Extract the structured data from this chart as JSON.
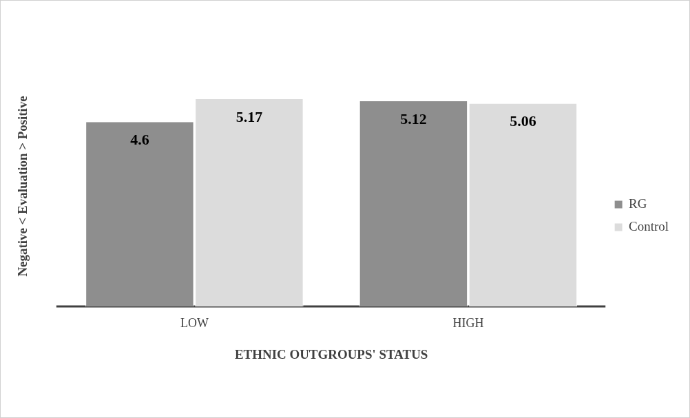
{
  "chart_data": {
    "type": "bar",
    "categories": [
      "LOW",
      "HIGH"
    ],
    "series": [
      {
        "name": "RG",
        "color": "#8e8e8e",
        "values": [
          4.6,
          5.12
        ]
      },
      {
        "name": "Control",
        "color": "#dcdcdc",
        "values": [
          5.17,
          5.06
        ]
      }
    ],
    "xlabel": "ETHNIC OUTGROUPS' STATUS",
    "ylabel": "Negative < Evaluation > Positive",
    "data_labels": true,
    "legend": "right",
    "grid": false
  }
}
